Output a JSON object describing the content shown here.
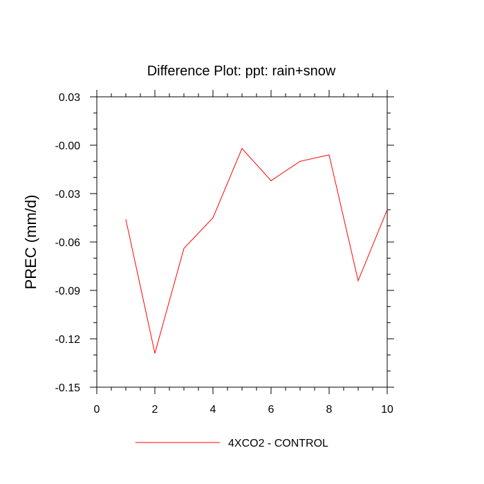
{
  "chart_data": {
    "type": "line",
    "title": "Difference Plot: ppt: rain+snow",
    "xlabel": "",
    "ylabel": "PREC  (mm/d)",
    "xlim": [
      0,
      10
    ],
    "ylim": [
      -0.15,
      0.03
    ],
    "x_ticks": [
      0,
      2,
      4,
      6,
      8,
      10
    ],
    "x_tick_labels": [
      "0",
      "2",
      "4",
      "6",
      "8",
      "10"
    ],
    "y_ticks": [
      0.03,
      0.0,
      -0.03,
      -0.06,
      -0.09,
      -0.12,
      -0.15
    ],
    "y_tick_labels": [
      "0.03",
      "-0.00",
      "-0.03",
      "-0.06",
      "-0.09",
      "-0.12",
      "-0.15"
    ],
    "grid": false,
    "legend_position": "bottom",
    "series": [
      {
        "name": "4XCO2 - CONTROL",
        "color": "#ff0000",
        "x": [
          1,
          2,
          3,
          4,
          5,
          6,
          7,
          8,
          9,
          10
        ],
        "y": [
          -0.046,
          -0.129,
          -0.064,
          -0.045,
          -0.002,
          -0.022,
          -0.01,
          -0.006,
          -0.084,
          -0.04
        ]
      }
    ]
  }
}
